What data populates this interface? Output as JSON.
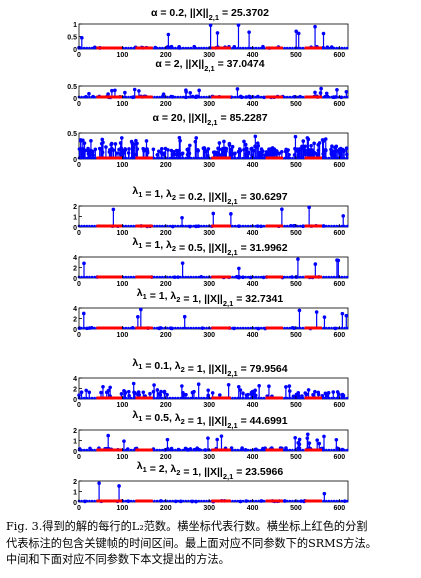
{
  "colors": {
    "stem": "#0000ff",
    "interval": "#ff0000",
    "axis": "#000000",
    "text": "#000000"
  },
  "xticks": [
    "0",
    "100",
    "200",
    "300",
    "400",
    "500",
    "600"
  ],
  "groups": [
    {
      "name": "srms",
      "panels": [
        {
          "title": "α = 0.2,   ||X||",
          "sub": "2,1",
          "value": " = 25.3702",
          "yticks": [
            "0",
            "0.5",
            "1"
          ],
          "density": "sparse-high"
        },
        {
          "title": "α = 2,   ||X||",
          "sub": "2,1",
          "value": " = 37.0474",
          "yticks": [
            "0",
            "0.5"
          ],
          "density": "medium"
        },
        {
          "title": "α = 20,   ||X||",
          "sub": "2,1",
          "value": " = 85.2287",
          "yticks": [
            "0",
            "0.5"
          ],
          "density": "dense"
        }
      ]
    },
    {
      "name": "proposed-vary-lambda2",
      "panels": [
        {
          "l1": "1",
          "l2": "0.2",
          "value": "30.6297",
          "yticks": [
            "0",
            "1",
            "2"
          ],
          "density": "sparse"
        },
        {
          "l1": "1",
          "l2": "0.5",
          "value": "31.9962",
          "yticks": [
            "0",
            "2",
            "4"
          ],
          "density": "sparse"
        },
        {
          "l1": "1",
          "l2": "1",
          "value": "32.7341",
          "yticks": [
            "0",
            "2",
            "4"
          ],
          "density": "sparse"
        }
      ]
    },
    {
      "name": "proposed-vary-lambda1",
      "panels": [
        {
          "l1": "0.1",
          "l2": "1",
          "value": "79.9564",
          "yticks": [
            "0",
            "2",
            "4"
          ],
          "density": "medium-high"
        },
        {
          "l1": "0.5",
          "l2": "1",
          "value": "44.6991",
          "yticks": [
            "0",
            "1",
            "2"
          ],
          "density": "medium"
        },
        {
          "l1": "2",
          "l2": "1",
          "value": "23.5966",
          "yticks": [
            "0",
            "1",
            "2"
          ],
          "density": "sparse"
        }
      ]
    }
  ],
  "caption": {
    "line1": "Fig. 3.得到的解的每行的L₂范数。横坐标代表行数。横坐标上红色的分割",
    "line2": "代表标注的包含关键帧的时间区间。最上面对应不同参数下的SRMS方法。",
    "line3": "中间和下面对应不同参数下本文提出的方法。"
  }
}
